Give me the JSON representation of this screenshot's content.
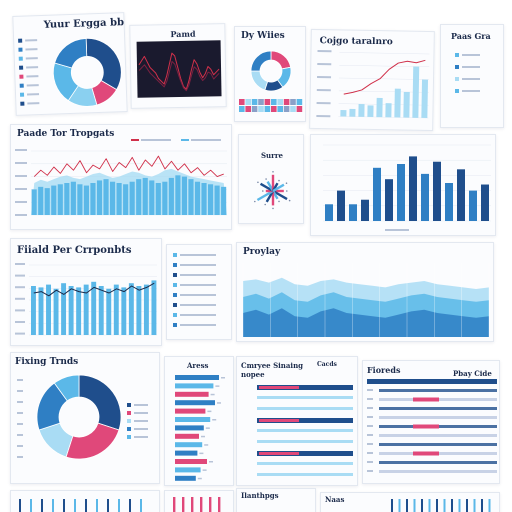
{
  "colors": {
    "navy": "#1f4e8c",
    "blue": "#2f7fc4",
    "sky": "#5bb8e8",
    "light": "#a9dcf4",
    "pink": "#e0487a",
    "dark": "#1a1a2e",
    "red": "#d0304a"
  },
  "titles": {
    "p1": "Yuur Ergga bbes",
    "p2": "Pamd",
    "p3": "Dy Wiies",
    "p4": "Cojgo taralnro",
    "p5": "Paas Gra",
    "p6": "Paade Tor Tropgats",
    "p7": "Surre",
    "p8": "Fiiald Per Crrponbts",
    "p9": "Proylay",
    "p10": "Fixing Trnds",
    "p11": "Aress",
    "p12": "Cmryee Sinaing nopee",
    "p12b": "Cacds",
    "p13": "Fioreds",
    "p13b": "Pbay Cide",
    "p14": "Ilanthpgs",
    "p15": "Naas"
  },
  "chart_data": [
    {
      "type": "pie",
      "id": "donut-top-left",
      "title": "Yuur Ergga bbes",
      "values": [
        34,
        12,
        14,
        20,
        20
      ],
      "colors": [
        "#1f4e8c",
        "#e0487a",
        "#8ad0f0",
        "#5bb8e8",
        "#2f7fc4"
      ]
    },
    {
      "type": "line",
      "id": "line-dark",
      "title": "Pamd",
      "x": [
        0,
        1,
        2,
        3,
        4,
        5,
        6,
        7,
        8,
        9,
        10,
        11,
        12,
        13,
        14,
        15,
        16,
        17,
        18,
        19,
        20,
        21,
        22,
        23,
        24,
        25,
        26,
        27,
        28,
        29
      ],
      "series": [
        {
          "values": [
            52,
            55,
            58,
            54,
            50,
            48,
            46,
            42,
            40,
            38,
            44,
            52,
            60,
            58,
            50,
            42,
            36,
            34,
            40,
            48,
            55,
            52,
            46,
            42,
            45,
            50,
            48,
            44,
            46,
            48
          ]
        },
        {
          "values": [
            48,
            50,
            52,
            49,
            46,
            44,
            42,
            40,
            38,
            36,
            40,
            47,
            54,
            52,
            46,
            40,
            35,
            33,
            37,
            44,
            50,
            48,
            43,
            40,
            42,
            46,
            45,
            41,
            43,
            45
          ]
        }
      ]
    },
    {
      "type": "pie",
      "id": "donut-small",
      "title": "Dy Wiies",
      "values": [
        22,
        18,
        15,
        20,
        25
      ],
      "colors": [
        "#e0487a",
        "#5bb8e8",
        "#1f4e8c",
        "#a9dcf4",
        "#2f7fc4"
      ]
    },
    {
      "type": "heatmap",
      "id": "heatmap-strip",
      "rows": 2,
      "cols": 10,
      "values": [
        [
          1,
          3,
          2,
          4,
          1,
          2,
          3,
          1,
          4,
          2
        ],
        [
          2,
          1,
          4,
          3,
          2,
          1,
          2,
          4,
          3,
          1
        ]
      ],
      "colors": [
        "#1f4e8c",
        "#e0487a",
        "#5bb8e8",
        "#a9dcf4",
        "#8aa0c8"
      ]
    },
    {
      "type": "bar",
      "id": "bar-line-top",
      "title": "Cojgo taralnro",
      "categories": [
        "",
        "",
        "",
        "",
        "",
        "",
        "",
        "",
        "",
        ""
      ],
      "values": [
        10,
        12,
        20,
        18,
        30,
        22,
        45,
        40,
        80,
        60
      ],
      "line": [
        35,
        38,
        42,
        52,
        60,
        75,
        85,
        88,
        86,
        90
      ],
      "ylim": [
        0,
        100
      ]
    },
    {
      "type": "area",
      "id": "combo-wide",
      "title": "Paade Tor Tropgats",
      "x": [
        0,
        1,
        2,
        3,
        4,
        5,
        6,
        7,
        8,
        9,
        10,
        11,
        12,
        13,
        14,
        15,
        16,
        17,
        18,
        19,
        20,
        21,
        22,
        23,
        24,
        25,
        26,
        27,
        28,
        29
      ],
      "bars": [
        40,
        44,
        42,
        46,
        48,
        50,
        52,
        48,
        46,
        50,
        54,
        56,
        52,
        50,
        48,
        52,
        56,
        58,
        54,
        50,
        52,
        58,
        62,
        60,
        56,
        52,
        50,
        48,
        46,
        44
      ],
      "area": [
        50,
        55,
        52,
        56,
        60,
        62,
        58,
        56,
        60,
        64,
        66,
        62,
        58,
        60,
        64,
        68,
        66,
        62,
        60,
        64,
        70,
        72,
        68,
        64,
        60,
        58,
        56,
        54,
        52,
        50
      ],
      "line": [
        60,
        70,
        62,
        75,
        65,
        80,
        70,
        85,
        66,
        78,
        72,
        88,
        68,
        82,
        74,
        90,
        70,
        86,
        76,
        92,
        72,
        84,
        70,
        80,
        66,
        74,
        62,
        70,
        60,
        64
      ],
      "ylim": [
        0,
        100
      ]
    },
    {
      "type": "scatter",
      "id": "radial-small",
      "title": "Surre",
      "values": [
        6,
        9,
        5,
        8,
        7,
        10,
        4,
        8,
        6,
        9,
        5,
        7
      ]
    },
    {
      "type": "bar",
      "id": "bar-tall",
      "categories": [
        "",
        "",
        "",
        "",
        "",
        "",
        "",
        "",
        "",
        "",
        "",
        "",
        "",
        ""
      ],
      "values": [
        22,
        40,
        22,
        28,
        70,
        55,
        75,
        85,
        62,
        78,
        50,
        68,
        40,
        48
      ],
      "ylim": [
        0,
        100
      ]
    },
    {
      "type": "bar",
      "id": "bar-line-mid",
      "title": "Fiiald Per Crrponbts",
      "categories": [
        "",
        "",
        "",
        "",
        "",
        "",
        "",
        "",
        "",
        "",
        "",
        "",
        "",
        "",
        "",
        "",
        ""
      ],
      "values": [
        70,
        68,
        72,
        66,
        74,
        70,
        68,
        72,
        76,
        70,
        66,
        72,
        68,
        74,
        70,
        72,
        78
      ],
      "line": [
        60,
        62,
        56,
        64,
        58,
        66,
        62,
        60,
        68,
        64,
        60,
        66,
        62,
        70,
        64,
        68,
        74
      ],
      "ylim": [
        0,
        100
      ]
    },
    {
      "type": "area",
      "id": "area-wide",
      "title": "Proylay",
      "x": [
        0,
        1,
        2,
        3,
        4,
        5,
        6,
        7,
        8,
        9,
        10,
        11,
        12,
        13,
        14,
        15,
        16,
        17,
        18,
        19
      ],
      "series": [
        {
          "values": [
            70,
            72,
            68,
            74,
            66,
            64,
            70,
            72,
            68,
            66,
            64,
            62,
            66,
            68,
            70,
            66,
            64,
            62,
            60,
            62
          ]
        },
        {
          "values": [
            50,
            54,
            48,
            56,
            46,
            44,
            52,
            56,
            50,
            48,
            46,
            44,
            48,
            52,
            54,
            50,
            48,
            46,
            44,
            46
          ]
        },
        {
          "values": [
            30,
            34,
            28,
            36,
            26,
            24,
            32,
            36,
            30,
            28,
            26,
            24,
            28,
            32,
            34,
            30,
            28,
            26,
            24,
            26
          ]
        }
      ],
      "ylim": [
        0,
        100
      ]
    },
    {
      "type": "pie",
      "id": "donut-bottom-left",
      "title": "Fixing Trnds",
      "values": [
        30,
        25,
        15,
        20,
        10
      ],
      "colors": [
        "#1f4e8c",
        "#e0487a",
        "#a9dcf4",
        "#2f7fc4",
        "#5bb8e8"
      ]
    },
    {
      "type": "bar",
      "id": "hbar-pink",
      "title": "Aress",
      "orientation": "horizontal",
      "categories": [
        "",
        "",
        "",
        "",
        "",
        "",
        "",
        "",
        "",
        "",
        "",
        "",
        ""
      ],
      "values": [
        55,
        48,
        42,
        50,
        38,
        44,
        36,
        30,
        34,
        28,
        40,
        32,
        26
      ],
      "colors": [
        "#2f7fc4",
        "#5bb8e8",
        "#e0487a",
        "#2f7fc4",
        "#e0487a",
        "#5bb8e8",
        "#2f7fc4",
        "#e0487a",
        "#5bb8e8",
        "#2f7fc4",
        "#e0487a",
        "#5bb8e8",
        "#2f7fc4"
      ],
      "ylim": [
        0,
        60
      ]
    }
  ]
}
